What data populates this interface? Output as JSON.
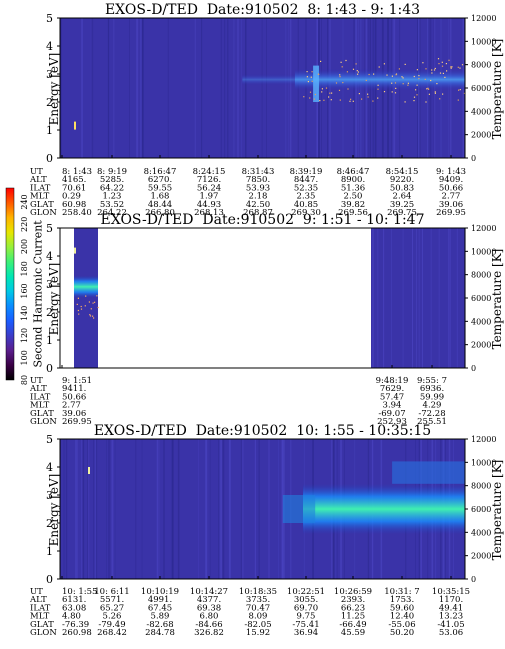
{
  "colorbar": {
    "label": "Second Harmonic Current",
    "ticks": [
      "240",
      "220",
      "200",
      "180",
      "160",
      "140",
      "120",
      "100",
      "80"
    ],
    "colors": [
      "#000000",
      "#3a0045",
      "#5a1e8c",
      "#3c3cc8",
      "#1a5cff",
      "#0a8cff",
      "#00c8e6",
      "#00e6b4",
      "#3cf078",
      "#96f03c",
      "#e6e600",
      "#ffb400",
      "#ff5a00",
      "#ff0000"
    ]
  },
  "axes": {
    "energy_label": "Energy [eV]",
    "temperature_label": "Temperature [K]",
    "energy_ticks": [
      "0",
      "1",
      "2",
      "3",
      "4",
      "5"
    ],
    "temperature_ticks": [
      "0",
      "2000",
      "4000",
      "6000",
      "8000",
      "10000",
      "12000"
    ]
  },
  "orbit_labels": [
    "UT",
    "ALT",
    "ILAT",
    "MLT",
    "GLAT",
    "GLON"
  ],
  "chart_data": [
    {
      "type": "heatmap",
      "title": "EXOS-D/TED  Date:910502  8: 1:43 - 9: 1:43",
      "ylabel": "Energy [eV]",
      "y2label": "Temperature [K]",
      "ylim": [
        0,
        5
      ],
      "y2lim": [
        0,
        12000
      ],
      "columns": [
        {
          "UT": "8: 1:43",
          "ALT": "4165.",
          "ILAT": "70.61",
          "MLT": "0.29",
          "GLAT": "60.98",
          "GLON": "258.40"
        },
        {
          "UT": "8: 9:19",
          "ALT": "5285.",
          "ILAT": "64.22",
          "MLT": "1.23",
          "GLAT": "53.52",
          "GLON": "264.22"
        },
        {
          "UT": "8:16:47",
          "ALT": "6270.",
          "ILAT": "59.55",
          "MLT": "1.68",
          "GLAT": "48.44",
          "GLON": "266.80"
        },
        {
          "UT": "8:24:15",
          "ALT": "7126.",
          "ILAT": "56.24",
          "MLT": "1.97",
          "GLAT": "44.93",
          "GLON": "268.13"
        },
        {
          "UT": "8:31:43",
          "ALT": "7850.",
          "ILAT": "53.93",
          "MLT": "2.18",
          "GLAT": "42.50",
          "GLON": "268.87"
        },
        {
          "UT": "8:39:19",
          "ALT": "8447.",
          "ILAT": "52.35",
          "MLT": "2.35",
          "GLAT": "40.85",
          "GLON": "269.30"
        },
        {
          "UT": "8:46:47",
          "ALT": "8900.",
          "ILAT": "51.36",
          "MLT": "2.50",
          "GLAT": "39.82",
          "GLON": "269.56"
        },
        {
          "UT": "8:54:15",
          "ALT": "9220.",
          "ILAT": "50.83",
          "MLT": "2.64",
          "GLAT": "39.25",
          "GLON": "269.75"
        },
        {
          "UT": "9: 1:43",
          "ALT": "9409.",
          "ILAT": "50.66",
          "MLT": "2.77",
          "GLAT": "39.06",
          "GLON": "269.95"
        }
      ]
    },
    {
      "type": "heatmap",
      "title": "EXOS-D/TED  Date:910502  9: 1:51 - 10: 1:47",
      "ylabel": "Energy [eV]",
      "y2label": "Temperature [K]",
      "ylim": [
        0,
        5
      ],
      "y2lim": [
        0,
        12000
      ],
      "columns": [
        {
          "UT": "9: 1:51",
          "ALT": "9411.",
          "ILAT": "50.66",
          "MLT": "2.77",
          "GLAT": "39.06",
          "GLON": "269.95"
        },
        {
          "UT": "9:48:19",
          "ALT": "7629.",
          "ILAT": "57.47",
          "MLT": "3.94",
          "GLAT": "-69.07",
          "GLON": "252.93"
        },
        {
          "UT": "9:55: 7",
          "ALT": "6936.",
          "ILAT": "59.99",
          "MLT": "4.29",
          "GLAT": "-72.28",
          "GLON": "255.51"
        }
      ]
    },
    {
      "type": "heatmap",
      "title": "EXOS-D/TED  Date:910502  10: 1:55 - 10:35:15",
      "ylabel": "Energy [eV]",
      "y2label": "Temperature [K]",
      "ylim": [
        0,
        5
      ],
      "y2lim": [
        0,
        12000
      ],
      "columns": [
        {
          "UT": "10: 1:55",
          "ALT": "6131.",
          "ILAT": "63.08",
          "MLT": "4.80",
          "GLAT": "-76.39",
          "GLON": "260.98"
        },
        {
          "UT": "10: 6:11",
          "ALT": "5571.",
          "ILAT": "65.27",
          "MLT": "5.26",
          "GLAT": "-79.49",
          "GLON": "268.42"
        },
        {
          "UT": "10:10:19",
          "ALT": "4991.",
          "ILAT": "67.45",
          "MLT": "5.89",
          "GLAT": "-82.68",
          "GLON": "284.78"
        },
        {
          "UT": "10:14:27",
          "ALT": "4377.",
          "ILAT": "69.38",
          "MLT": "6.80",
          "GLAT": "-84.66",
          "GLON": "326.82"
        },
        {
          "UT": "10:18:35",
          "ALT": "3735.",
          "ILAT": "70.47",
          "MLT": "8.09",
          "GLAT": "-82.05",
          "GLON": "15.92"
        },
        {
          "UT": "10:22:51",
          "ALT": "3055.",
          "ILAT": "69.70",
          "MLT": "9.75",
          "GLAT": "-75.41",
          "GLON": "36.94"
        },
        {
          "UT": "10:26:59",
          "ALT": "2393.",
          "ILAT": "66.23",
          "MLT": "11.25",
          "GLAT": "-66.49",
          "GLON": "45.59"
        },
        {
          "UT": "10:31: 7",
          "ALT": "1753.",
          "ILAT": "59.60",
          "MLT": "12.40",
          "GLAT": "-55.06",
          "GLON": "50.20"
        },
        {
          "UT": "10:35:15",
          "ALT": "1170.",
          "ILAT": "49.41",
          "MLT": "13.23",
          "GLAT": "-41.05",
          "GLON": "53.06"
        }
      ]
    }
  ]
}
